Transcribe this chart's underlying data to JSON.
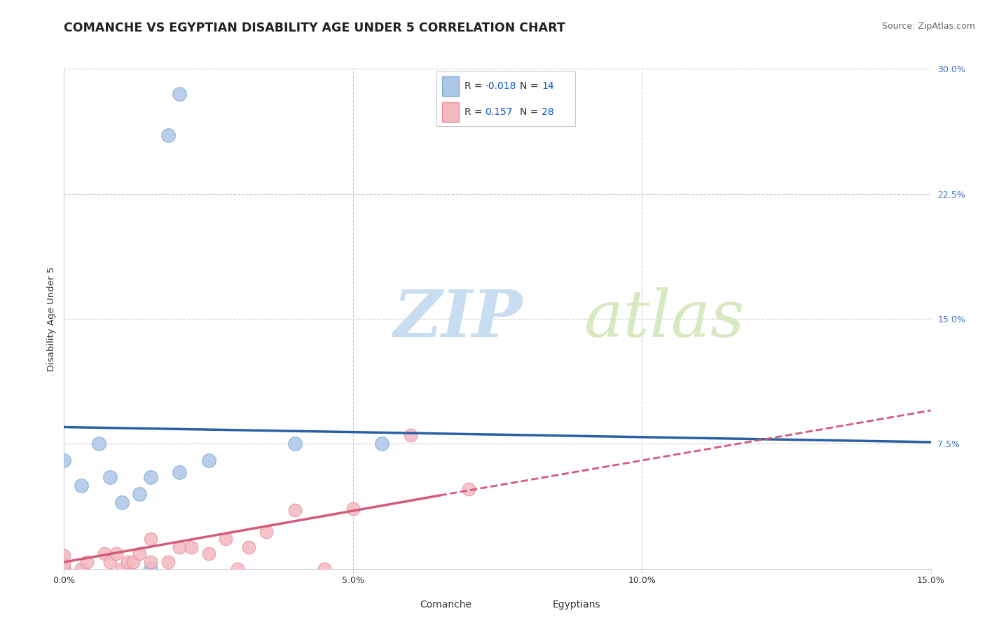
{
  "title": "COMANCHE VS EGYPTIAN DISABILITY AGE UNDER 5 CORRELATION CHART",
  "source_text": "Source: ZipAtlas.com",
  "ylabel": "Disability Age Under 5",
  "xlim": [
    0.0,
    0.15
  ],
  "ylim": [
    0.0,
    0.3
  ],
  "xtick_labels": [
    "0.0%",
    "5.0%",
    "10.0%",
    "15.0%"
  ],
  "xtick_positions": [
    0.0,
    0.05,
    0.1,
    0.15
  ],
  "ytick_labels_right": [
    "7.5%",
    "15.0%",
    "22.5%",
    "30.0%"
  ],
  "ytick_positions_right": [
    0.075,
    0.15,
    0.225,
    0.3
  ],
  "comanche_fill_color": "#aec6e8",
  "comanche_edge_color": "#7bafd4",
  "egyptian_fill_color": "#f4b8c1",
  "egyptian_edge_color": "#e8909a",
  "comanche_line_color": "#2b5fa5",
  "egyptian_line_color": "#d45a7a",
  "right_tick_color": "#4472c4",
  "background_color": "#ffffff",
  "grid_color": "#cccccc",
  "watermark_zip_color": "#c8ddf0",
  "watermark_atlas_color": "#d8e8c0",
  "comanche_points_x": [
    0.0,
    0.003,
    0.006,
    0.008,
    0.01,
    0.013,
    0.015,
    0.015,
    0.02,
    0.025,
    0.04,
    0.055,
    0.018,
    0.02
  ],
  "comanche_points_y": [
    0.065,
    0.05,
    0.075,
    0.055,
    0.04,
    0.045,
    0.0,
    0.055,
    0.058,
    0.065,
    0.075,
    0.075,
    0.26,
    0.285
  ],
  "egyptian_points_x": [
    0.0,
    0.0,
    0.0,
    0.0,
    0.003,
    0.004,
    0.007,
    0.008,
    0.009,
    0.01,
    0.011,
    0.012,
    0.013,
    0.015,
    0.015,
    0.018,
    0.02,
    0.022,
    0.025,
    0.028,
    0.03,
    0.032,
    0.035,
    0.04,
    0.045,
    0.05,
    0.06,
    0.07
  ],
  "egyptian_points_y": [
    0.0,
    0.0,
    0.003,
    0.008,
    0.0,
    0.004,
    0.009,
    0.004,
    0.009,
    0.0,
    0.004,
    0.004,
    0.009,
    0.004,
    0.018,
    0.004,
    0.013,
    0.013,
    0.009,
    0.018,
    0.0,
    0.013,
    0.022,
    0.035,
    0.0,
    0.036,
    0.08,
    0.048
  ],
  "comanche_trendline": [
    0.0,
    0.15,
    0.085,
    0.076
  ],
  "egyptian_solid_trendline": [
    0.0,
    0.065,
    0.004,
    0.044
  ],
  "egyptian_dashed_trendline": [
    0.065,
    0.15,
    0.044,
    0.095
  ],
  "legend_box_color": "#ffffff",
  "legend_border_color": "#cccccc",
  "legend_text_color": "#333333",
  "legend_value_color": "#1155cc",
  "title_color": "#222222",
  "source_color": "#666666",
  "title_fontsize": 12.5,
  "axis_label_fontsize": 9.5,
  "tick_fontsize": 9,
  "legend_fontsize": 10,
  "source_fontsize": 9,
  "figsize": [
    14.06,
    8.92
  ],
  "dpi": 100
}
